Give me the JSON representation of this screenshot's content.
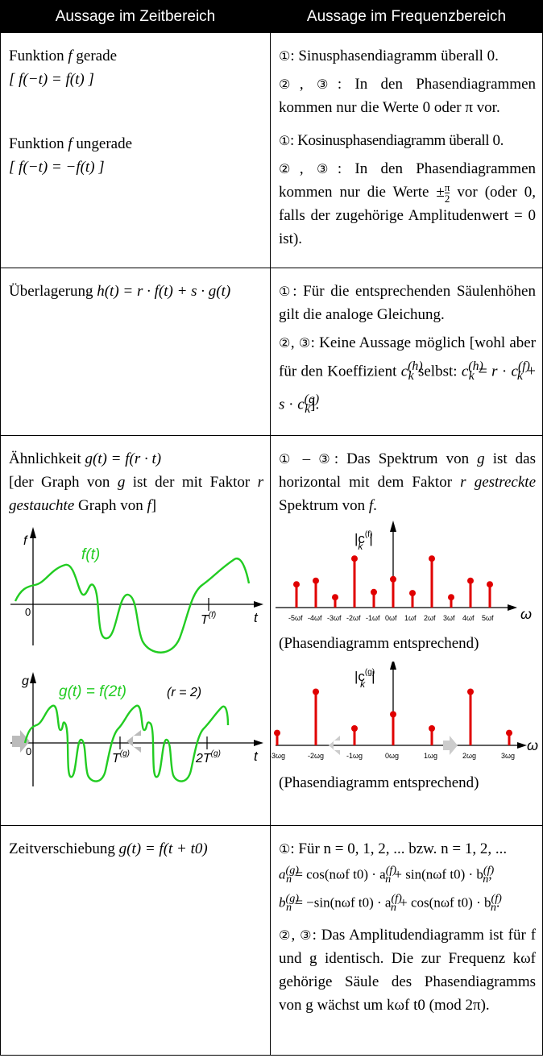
{
  "header": {
    "left": "Aussage im Zeitbereich",
    "right": "Aussage im Frequenzbereich"
  },
  "row1": {
    "left_a_1": "Funktion ",
    "left_a_2": " gerade",
    "left_a_eq": "[ f(−t) = f(t) ]",
    "left_b_1": "Funktion ",
    "left_b_2": " ungerade",
    "left_b_eq": "[ f(−t) = −f(t) ]",
    "right_a1": ": Sinusphasendiagramm überall 0.",
    "right_a2": ": In den Phasendiagrammen kommen nur die Werte 0 oder π vor.",
    "right_b1": ": Kosinusphasendiagramm überall 0.",
    "right_b2a": ": In den Phasendiagrammen kommen nur die Werte ±",
    "right_b2b": " vor (oder 0, falls der zugehörige Amplitudenwert = 0 ist)."
  },
  "row2": {
    "left": "Überlagerung ",
    "left_eq": "h(t) = r · f(t) + s · g(t)",
    "right1": ":  Für die entsprechenden Säulenhöhen gilt die analoge Gleichung.",
    "right2a": ":  Keine Aussage möglich [wohl aber für den Koeffizient ",
    "right2b": " selbst: ",
    "right2c": "]."
  },
  "row3": {
    "left_1": "Ähnlichkeit ",
    "left_eq": "g(t) = f(r · t)",
    "left_2a": "[der Graph von ",
    "left_2b": " ist der mit Faktor ",
    "left_2c": " gestauchte",
    "left_2d": " Graph von ",
    "left_2e": "]",
    "right_1a": ": Das Spektrum von ",
    "right_1b": " ist das horizontal mit dem Faktor ",
    "right_1c": " gestreckte",
    "right_1d": " Spektrum von ",
    "right_1e": ".",
    "phase_note_1": "(Phasendiagramm entsprechend)",
    "phase_note_2": "(Phasendiagramm entsprechend)",
    "graph_f_label": "f(t)",
    "graph_g_label": "g(t) = f(2t)",
    "graph_r_label": "(r = 2)",
    "axis_f": "f",
    "axis_g": "g",
    "axis_t": "t",
    "axis_0": "0",
    "tick_Tf": "T",
    "tick_Tf_sup": "(f)",
    "tick_Tg": "T",
    "tick_Tg_sup": "(g)",
    "tick_2Tg": "2T",
    "tick_2Tg_sup": "(g)",
    "spec_f_label": "|c",
    "spec_f_sup": "(f)",
    "spec_g_sup": "(g)",
    "spec_k": "k",
    "omega": "ω",
    "f_ticks": [
      "-5ωf",
      "-4ωf",
      "-3ωf",
      "-2ωf",
      "-1ωf",
      "0ωf",
      "1ωf",
      "2ωf",
      "3ωf",
      "4ωf",
      "5ωf"
    ],
    "g_ticks": [
      "-3ωg",
      "-2ωg",
      "-1ωg",
      "0ωg",
      "1ωg",
      "2ωg",
      "3ωg"
    ]
  },
  "spectra": {
    "f_heights": [
      0.45,
      0.52,
      0.2,
      0.95,
      0.3,
      0.55,
      0.28,
      0.95,
      0.2,
      0.52,
      0.45
    ],
    "g_heights": [
      0.22,
      0.95,
      0.3,
      0.55,
      0.3,
      0.95,
      0.22
    ],
    "stem_color": "#e00000",
    "curve_color": "#22cc22"
  },
  "row4": {
    "left_1": "Zeitverschiebung ",
    "left_eq": "g(t) = f(t + t0)",
    "right_1": ":  Für  n = 0, 1, 2, ...  bzw.  n = 1, 2, ...",
    "right_a": "a",
    "right_a_line": "=  cos(nωf t0) · a",
    "right_a_line2": " + sin(nωf t0) · b",
    "right_b_line": "= −sin(nωf t0) · a",
    "right_b_line2": " + cos(nωf t0) · b",
    "right_2": ": Das Amplitudendiagramm ist für f und g identisch. Die zur Frequenz kωf gehörige Säule des Phasendiagramms von g wächst um kωf t0  (mod 2π)."
  },
  "circles": [
    "①",
    "②",
    "③"
  ]
}
